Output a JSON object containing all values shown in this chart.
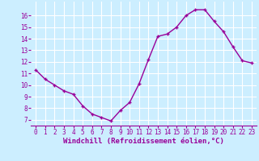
{
  "x": [
    0,
    1,
    2,
    3,
    4,
    5,
    6,
    7,
    8,
    9,
    10,
    11,
    12,
    13,
    14,
    15,
    16,
    17,
    18,
    19,
    20,
    21,
    22,
    23
  ],
  "y": [
    11.3,
    10.5,
    10.0,
    9.5,
    9.2,
    8.2,
    7.5,
    7.2,
    6.9,
    7.8,
    8.5,
    10.1,
    12.2,
    14.2,
    14.4,
    15.0,
    16.0,
    16.5,
    16.5,
    15.5,
    14.6,
    13.3,
    12.1,
    11.9
  ],
  "line_color": "#990099",
  "marker": "+",
  "marker_size": 3.5,
  "linewidth": 1.0,
  "markeredgewidth": 1.0,
  "xlabel": "Windchill (Refroidissement éolien,°C)",
  "xlabel_fontsize": 6.5,
  "ylabel_ticks": [
    7,
    8,
    9,
    10,
    11,
    12,
    13,
    14,
    15,
    16
  ],
  "xtick_labels": [
    "0",
    "1",
    "2",
    "3",
    "4",
    "5",
    "6",
    "7",
    "8",
    "9",
    "10",
    "11",
    "12",
    "13",
    "14",
    "15",
    "16",
    "17",
    "18",
    "19",
    "20",
    "21",
    "22",
    "23"
  ],
  "ylim": [
    6.5,
    17.2
  ],
  "xlim": [
    -0.5,
    23.5
  ],
  "bg_color": "#cceeff",
  "grid_color": "#ffffff",
  "tick_fontsize": 5.5,
  "label_color": "#990099"
}
